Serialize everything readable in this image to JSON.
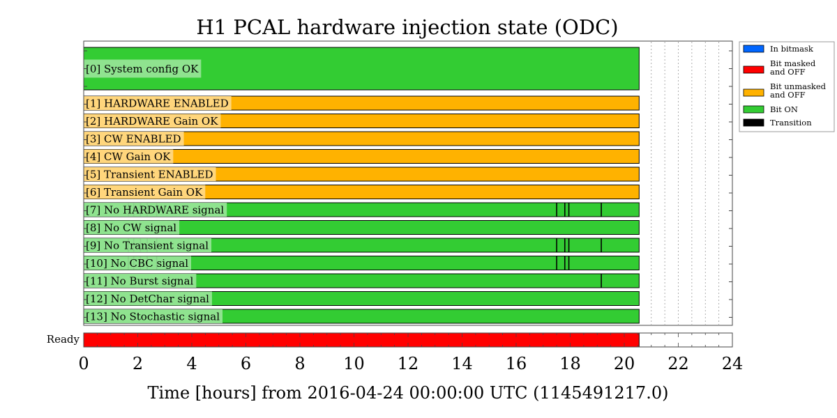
{
  "chart_data": {
    "type": "segment-state",
    "title": "H1 PCAL hardware injection state (ODC)",
    "xlabel": "Time [hours] from 2016-04-24 00:00:00 UTC (1145491217.0)",
    "xlim": [
      0,
      24
    ],
    "xticks": [
      "0",
      "2",
      "4",
      "6",
      "8",
      "10",
      "12",
      "14",
      "16",
      "18",
      "20",
      "22",
      "24"
    ],
    "data_end_hours": 20.55,
    "grid": "dotted",
    "legend_position": "outside-right",
    "colors": {
      "in_bitmask": "#0066ff",
      "bit_masked_off": "#ff0000",
      "bit_unmasked_off": "#ffb200",
      "bit_on": "#33cc33",
      "transition": "#000000"
    },
    "legend": [
      {
        "label": "In bitmask",
        "color_key": "in_bitmask"
      },
      {
        "label": "Bit masked\nand OFF",
        "color_key": "bit_masked_off"
      },
      {
        "label": "Bit unmasked\nand OFF",
        "color_key": "bit_unmasked_off"
      },
      {
        "label": "Bit ON",
        "color_key": "bit_on"
      },
      {
        "label": "Transition",
        "color_key": "transition"
      }
    ],
    "bits": [
      {
        "label": "[0] System config OK",
        "state": "bit_on",
        "transitions": []
      },
      {
        "label": "[1] HARDWARE ENABLED",
        "state": "bit_unmasked_off",
        "transitions": []
      },
      {
        "label": "[2] HARDWARE Gain OK",
        "state": "bit_unmasked_off",
        "transitions": []
      },
      {
        "label": "[3] CW ENABLED",
        "state": "bit_unmasked_off",
        "transitions": []
      },
      {
        "label": "[4] CW Gain OK",
        "state": "bit_unmasked_off",
        "transitions": []
      },
      {
        "label": "[5] Transient ENABLED",
        "state": "bit_unmasked_off",
        "transitions": []
      },
      {
        "label": "[6] Transient Gain OK",
        "state": "bit_unmasked_off",
        "transitions": []
      },
      {
        "label": "[7] No HARDWARE signal",
        "state": "bit_on",
        "transitions": [
          1.65,
          1.85,
          2.1,
          2.35,
          2.7,
          17.5,
          17.8,
          17.95,
          19.15
        ]
      },
      {
        "label": "[8] No CW signal",
        "state": "bit_on",
        "transitions": []
      },
      {
        "label": "[9] No Transient signal",
        "state": "bit_on",
        "transitions": [
          1.65,
          1.85,
          2.1,
          2.35,
          2.7,
          17.5,
          17.8,
          17.95,
          19.15
        ]
      },
      {
        "label": "[10] No CBC signal",
        "state": "bit_on",
        "transitions": [
          1.65,
          1.85,
          2.1,
          2.35,
          2.7,
          17.5,
          17.8,
          17.95
        ]
      },
      {
        "label": "[11] No Burst signal",
        "state": "bit_on",
        "transitions": [
          19.15
        ]
      },
      {
        "label": "[12] No DetChar signal",
        "state": "bit_on",
        "transitions": []
      },
      {
        "label": "[13] No Stochastic signal",
        "state": "bit_on",
        "transitions": []
      }
    ],
    "ready": {
      "label": "Ready",
      "state": "bit_masked_off"
    }
  }
}
